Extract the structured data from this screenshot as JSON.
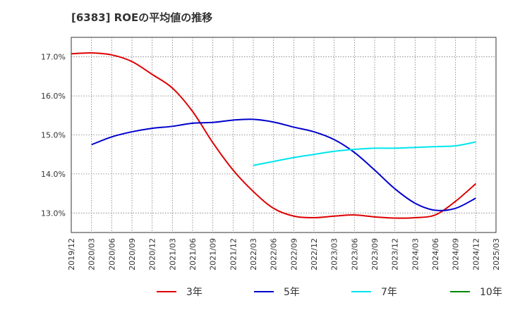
{
  "chart_data": {
    "type": "line",
    "title": "[6383]  ROEの平均値の推移",
    "xlabel": "",
    "ylabel": "",
    "ylim": [
      12.5,
      17.5
    ],
    "yticks": [
      13.0,
      14.0,
      15.0,
      16.0,
      17.0
    ],
    "ytick_labels": [
      "13.0%",
      "14.0%",
      "15.0%",
      "16.0%",
      "17.0%"
    ],
    "categories": [
      "2019/12",
      "2020/03",
      "2020/06",
      "2020/09",
      "2020/12",
      "2021/03",
      "2021/06",
      "2021/09",
      "2021/12",
      "2022/03",
      "2022/06",
      "2022/09",
      "2022/12",
      "2023/03",
      "2023/06",
      "2023/09",
      "2023/12",
      "2024/03",
      "2024/06",
      "2024/09",
      "2024/12",
      "2025/03"
    ],
    "grid": true,
    "legend_position": "bottom",
    "series": [
      {
        "name": "3年",
        "color": "#dd0000",
        "values": [
          17.08,
          17.1,
          17.05,
          16.88,
          16.55,
          16.2,
          15.6,
          14.8,
          14.1,
          13.55,
          13.12,
          12.92,
          12.88,
          12.92,
          12.95,
          12.9,
          12.87,
          12.88,
          12.95,
          13.3,
          13.75,
          null
        ]
      },
      {
        "name": "5年",
        "color": "#0000cc",
        "values": [
          null,
          14.75,
          14.95,
          15.08,
          15.17,
          15.22,
          15.3,
          15.32,
          15.38,
          15.4,
          15.33,
          15.2,
          15.08,
          14.88,
          14.55,
          14.1,
          13.62,
          13.25,
          13.07,
          13.12,
          13.38,
          null
        ]
      },
      {
        "name": "7年",
        "color": "#00e5ee",
        "values": [
          null,
          null,
          null,
          null,
          null,
          null,
          null,
          null,
          null,
          14.22,
          14.32,
          14.42,
          14.5,
          14.58,
          14.63,
          14.66,
          14.66,
          14.68,
          14.7,
          14.72,
          14.82,
          null
        ]
      },
      {
        "name": "10年",
        "color": "#008800",
        "values": [
          null,
          null,
          null,
          null,
          null,
          null,
          null,
          null,
          null,
          null,
          null,
          null,
          null,
          null,
          null,
          null,
          null,
          null,
          null,
          null,
          null,
          null
        ]
      }
    ]
  }
}
